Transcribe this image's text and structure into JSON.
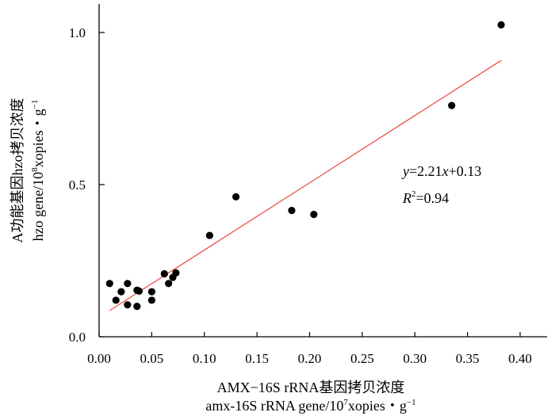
{
  "chart_data": {
    "type": "scatter",
    "xlabel": "AMX−16S rRNA基因拷贝浓度",
    "xlabel2": "amx-16S rRNA gene/10",
    "xlabel2_sup": "7",
    "xlabel2_tail": "xopies・g",
    "xlabel2_tail_sup": "−1",
    "ylabel": "A功能基因hzo拷贝浓度",
    "ylabel2": "hzo gene/10",
    "ylabel2_sup": "8",
    "ylabel2_tail": "xopies・g",
    "ylabel2_tail_sup": "−1",
    "xlim": [
      0.0,
      0.43
    ],
    "ylim": [
      0.0,
      1.1
    ],
    "x_ticks": [
      0.0,
      0.05,
      0.1,
      0.15,
      0.2,
      0.25,
      0.3,
      0.35,
      0.4
    ],
    "x_tick_labels": [
      "0.00",
      "0.05",
      "0.10",
      "0.15",
      "0.20",
      "0.25",
      "0.30",
      "0.35",
      "0.40"
    ],
    "y_ticks": [
      0.0,
      0.5,
      1.0
    ],
    "y_tick_labels": [
      "0.0",
      "0.5",
      "1.0"
    ],
    "x": [
      0.01,
      0.016,
      0.021,
      0.027,
      0.027,
      0.036,
      0.036,
      0.038,
      0.05,
      0.05,
      0.062,
      0.066,
      0.07,
      0.073,
      0.105,
      0.13,
      0.183,
      0.204,
      0.335,
      0.382
    ],
    "y": [
      0.175,
      0.12,
      0.148,
      0.105,
      0.175,
      0.1,
      0.153,
      0.15,
      0.12,
      0.148,
      0.207,
      0.175,
      0.195,
      0.21,
      0.333,
      0.46,
      0.415,
      0.402,
      0.76,
      1.025
    ],
    "fit": {
      "slope": 2.21,
      "intercept": 0.13,
      "x_range": [
        0.01,
        0.382
      ],
      "color": "#e8392f"
    },
    "equation": {
      "y": "y",
      "eq": "=2.21",
      "x": "x",
      "rest": "+0.13"
    },
    "r2": {
      "r": "R",
      "sup": "2",
      "rest": "=0.94"
    },
    "point_color": "#000000"
  }
}
